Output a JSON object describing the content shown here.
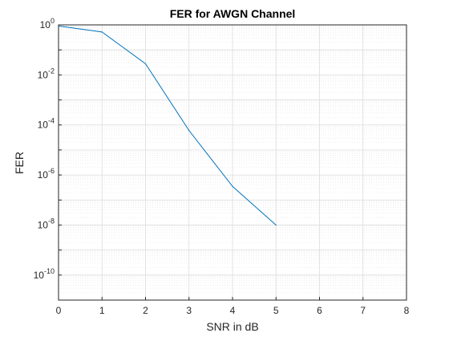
{
  "chart_data": {
    "type": "line",
    "title": "FER for AWGN Channel",
    "xlabel": "SNR in dB",
    "ylabel": "FER",
    "xscale": "linear",
    "yscale": "log",
    "xlim": [
      0,
      8
    ],
    "ylim": [
      1e-11,
      1
    ],
    "xticks": [
      0,
      1,
      2,
      3,
      4,
      5,
      6,
      7,
      8
    ],
    "yticks": [
      {
        "value": 1,
        "base": "10",
        "exp": "0"
      },
      {
        "value": 0.01,
        "base": "10",
        "exp": "-2"
      },
      {
        "value": 0.0001,
        "base": "10",
        "exp": "-4"
      },
      {
        "value": 1e-06,
        "base": "10",
        "exp": "-6"
      },
      {
        "value": 1e-08,
        "base": "10",
        "exp": "-8"
      },
      {
        "value": 1e-10,
        "base": "10",
        "exp": "-10"
      }
    ],
    "grid": true,
    "minor_grid": true,
    "series": [
      {
        "x": [
          0,
          1,
          2,
          3,
          4,
          5
        ],
        "y": [
          0.9,
          0.52,
          0.028,
          6e-05,
          3.5e-07,
          1e-08
        ],
        "color": "#0072BD"
      }
    ]
  }
}
